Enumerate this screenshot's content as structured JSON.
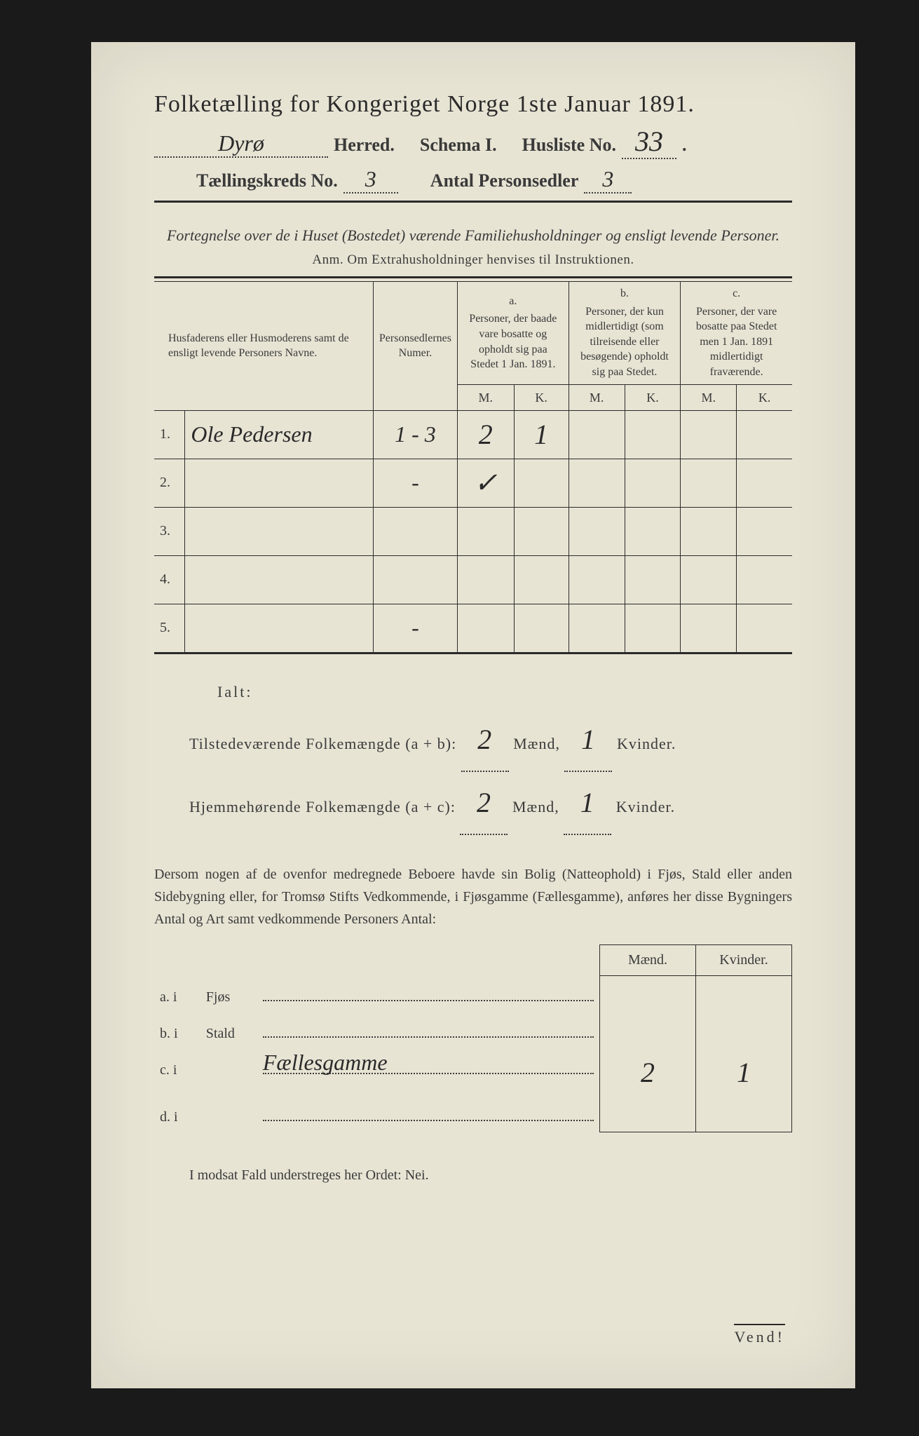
{
  "colors": {
    "page_bg": "#1a1a1a",
    "paper_bg": "#e8e4d4",
    "ink": "#2a2a2a",
    "hand_ink": "#2a2a2a"
  },
  "header": {
    "title": "Folketælling for Kongeriget Norge 1ste Januar 1891.",
    "herred_hand": "Dyrø",
    "herred_label": "Herred.",
    "schema_label": "Schema I.",
    "husliste_label": "Husliste No.",
    "husliste_no": "33",
    "kreds_label": "Tællingskreds No.",
    "kreds_no": "3",
    "antal_label": "Antal Personsedler",
    "antal_val": "3"
  },
  "section": {
    "fortegnelse": "Fortegnelse over de i Huset (Bostedet) værende Familiehusholdninger og ensligt levende Personer.",
    "anm": "Anm.  Om Extrahusholdninger henvises til Instruktionen."
  },
  "columns": {
    "names_header": "Husfaderens eller Husmoderens samt de ensligt levende Personers Navne.",
    "sedler_header": "Personsedlernes Numer.",
    "a_letter": "a.",
    "a_text": "Personer, der baade vare bosatte og opholdt sig paa Stedet 1 Jan. 1891.",
    "b_letter": "b.",
    "b_text": "Personer, der kun midlertidigt (som tilreisende eller besøgende) opholdt sig paa Stedet.",
    "c_letter": "c.",
    "c_text": "Personer, der vare bosatte paa Stedet men 1 Jan. 1891 midlertidigt fraværende.",
    "m": "M.",
    "k": "K."
  },
  "rows": [
    {
      "n": "1.",
      "name": "Ole Pedersen",
      "sedler": "1 - 3",
      "a_m": "2",
      "a_k": "1",
      "b_m": "",
      "b_k": "",
      "c_m": "",
      "c_k": ""
    },
    {
      "n": "2.",
      "name": "",
      "sedler": "-",
      "a_m": "✓",
      "a_k": "",
      "b_m": "",
      "b_k": "",
      "c_m": "",
      "c_k": ""
    },
    {
      "n": "3.",
      "name": "",
      "sedler": "",
      "a_m": "",
      "a_k": "",
      "b_m": "",
      "b_k": "",
      "c_m": "",
      "c_k": ""
    },
    {
      "n": "4.",
      "name": "",
      "sedler": "",
      "a_m": "",
      "a_k": "",
      "b_m": "",
      "b_k": "",
      "c_m": "",
      "c_k": ""
    },
    {
      "n": "5.",
      "name": "",
      "sedler": "-",
      "a_m": "",
      "a_k": "",
      "b_m": "",
      "b_k": "",
      "c_m": "",
      "c_k": ""
    }
  ],
  "ialt": {
    "label": "Ialt:",
    "line1_pre": "Tilstedeværende Folkemængde (a + b):",
    "line1_m": "2",
    "line1_k": "1",
    "line2_pre": "Hjemmehørende Folkemængde (a + c):",
    "line2_m": "2",
    "line2_k": "1",
    "maend": "Mænd,",
    "kvinder": "Kvinder."
  },
  "paragraph": "Dersom nogen af de ovenfor medregnede Beboere havde sin Bolig (Natteophold) i Fjøs, Stald eller anden Sidebygning eller, for Tromsø Stifts Vedkommende, i Fjøsgamme (Fællesgamme), anføres her disse Bygningers Antal og Art samt vedkommende Personers Antal:",
  "dwelling": {
    "maend": "Mænd.",
    "kvinder": "Kvinder.",
    "rows": [
      {
        "label": "a.  i",
        "type": "Fjøs",
        "hand": "",
        "m": "",
        "k": ""
      },
      {
        "label": "b.  i",
        "type": "Stald",
        "hand": "",
        "m": "",
        "k": ""
      },
      {
        "label": "c.  i",
        "type": "",
        "hand": "Fællesgamme",
        "m": "2",
        "k": "1"
      },
      {
        "label": "d.  i",
        "type": "",
        "hand": "",
        "m": "",
        "k": ""
      }
    ]
  },
  "footer": {
    "nei": "I modsat Fald understreges her Ordet: Nei.",
    "vend": "Vend!"
  }
}
